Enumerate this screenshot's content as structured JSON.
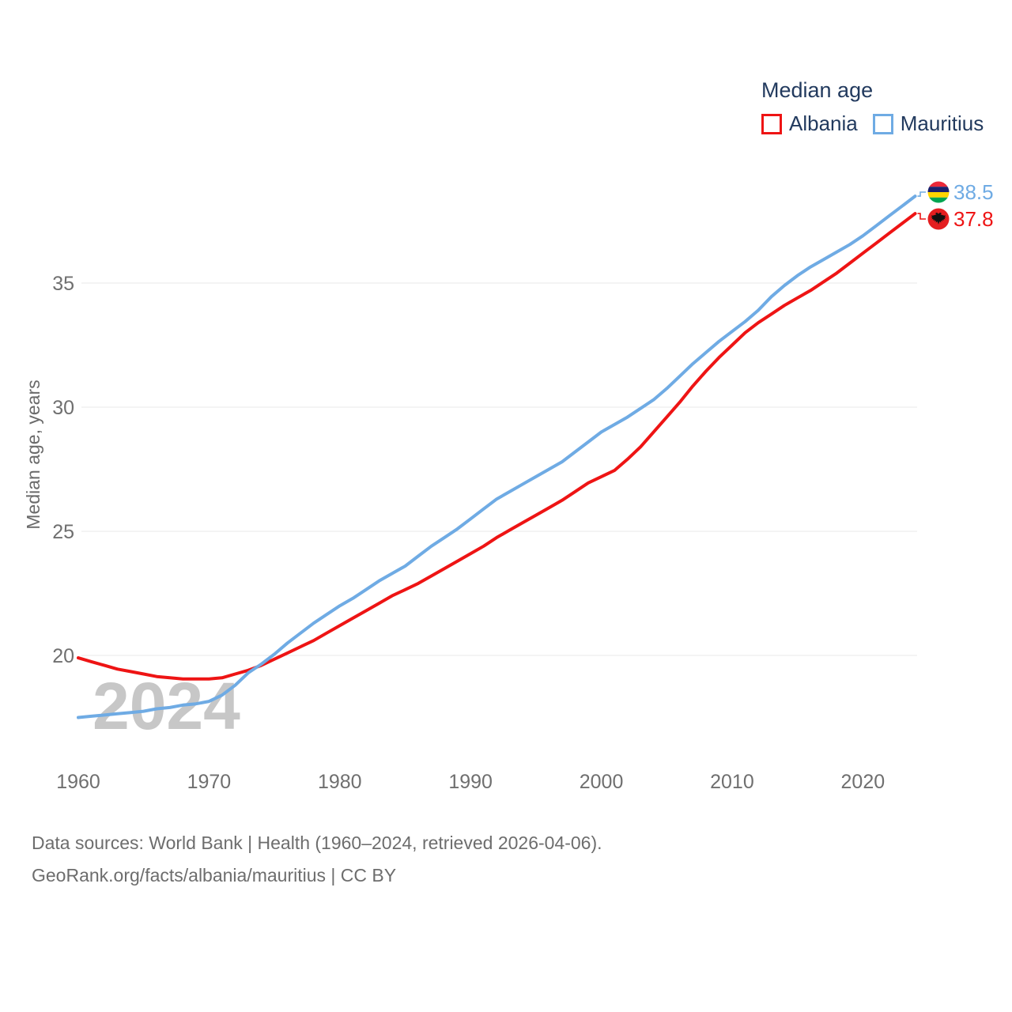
{
  "page": {
    "background": "#ffffff"
  },
  "legend": {
    "title": "Median age",
    "items": [
      {
        "label": "Albania",
        "color": "#ee1414"
      },
      {
        "label": "Mauritius",
        "color": "#6fabe4"
      }
    ]
  },
  "y_axis": {
    "title": "Median age, years",
    "ticks": [
      35,
      30,
      25,
      20
    ]
  },
  "x_axis": {
    "ticks": [
      1960,
      1970,
      1980,
      1990,
      2000,
      2010,
      2020
    ]
  },
  "watermark": "2024",
  "end_labels": [
    {
      "series": "Mauritius",
      "value": "38.5",
      "color": "#6fabe4"
    },
    {
      "series": "Albania",
      "value": "37.8",
      "color": "#ee1414"
    }
  ],
  "icons": {
    "mauritius_flag": {
      "name": "mauritius-flag-icon",
      "stripes": [
        "#ea2839",
        "#1a206d",
        "#ffd500",
        "#00a551"
      ]
    },
    "albania_flag": {
      "name": "albania-flag-icon",
      "background": "#e41e20",
      "eagle": "#111111"
    }
  },
  "footer": {
    "line1": "Data sources: World Bank | Health (1960–2024, retrieved 2026-04-06).",
    "line2": "GeoRank.org/facts/albania/mauritius | CC BY"
  },
  "chart_data": {
    "type": "line",
    "title": "Median age",
    "xlabel": "",
    "ylabel": "Median age, years",
    "xlim": [
      1960,
      2024
    ],
    "ylim": [
      17,
      39.5
    ],
    "x_ticks": [
      1960,
      1970,
      1980,
      1990,
      2000,
      2010,
      2020
    ],
    "y_ticks": [
      20,
      25,
      30,
      35
    ],
    "grid": "horizontal",
    "legend_position": "top-right",
    "x": [
      1960,
      1961,
      1962,
      1963,
      1964,
      1965,
      1966,
      1967,
      1968,
      1969,
      1970,
      1971,
      1972,
      1973,
      1974,
      1975,
      1976,
      1977,
      1978,
      1979,
      1980,
      1981,
      1982,
      1983,
      1984,
      1985,
      1986,
      1987,
      1988,
      1989,
      1990,
      1991,
      1992,
      1993,
      1994,
      1995,
      1996,
      1997,
      1998,
      1999,
      2000,
      2001,
      2002,
      2003,
      2004,
      2005,
      2006,
      2007,
      2008,
      2009,
      2010,
      2011,
      2012,
      2013,
      2014,
      2015,
      2016,
      2017,
      2018,
      2019,
      2020,
      2021,
      2022,
      2023,
      2024
    ],
    "series": [
      {
        "name": "Albania",
        "color": "#ee1414",
        "end_label": "37.8",
        "values": [
          19.9,
          19.75,
          19.6,
          19.45,
          19.35,
          19.25,
          19.15,
          19.1,
          19.05,
          19.05,
          19.05,
          19.1,
          19.25,
          19.4,
          19.6,
          19.85,
          20.1,
          20.35,
          20.6,
          20.9,
          21.2,
          21.5,
          21.8,
          22.1,
          22.4,
          22.65,
          22.9,
          23.2,
          23.5,
          23.8,
          24.1,
          24.4,
          24.75,
          25.05,
          25.35,
          25.65,
          25.95,
          26.25,
          26.6,
          26.95,
          27.2,
          27.45,
          27.9,
          28.4,
          29.0,
          29.6,
          30.2,
          30.85,
          31.45,
          32.0,
          32.5,
          33.0,
          33.4,
          33.75,
          34.1,
          34.4,
          34.7,
          35.05,
          35.4,
          35.8,
          36.2,
          36.6,
          37.0,
          37.4,
          37.8
        ]
      },
      {
        "name": "Mauritius",
        "color": "#6fabe4",
        "end_label": "38.5",
        "values": [
          17.5,
          17.55,
          17.6,
          17.65,
          17.7,
          17.75,
          17.85,
          17.9,
          18.0,
          18.05,
          18.15,
          18.4,
          18.8,
          19.3,
          19.65,
          20.05,
          20.5,
          20.9,
          21.3,
          21.65,
          22.0,
          22.3,
          22.65,
          23.0,
          23.3,
          23.6,
          24.0,
          24.4,
          24.75,
          25.1,
          25.5,
          25.9,
          26.3,
          26.6,
          26.9,
          27.2,
          27.5,
          27.8,
          28.2,
          28.6,
          29.0,
          29.3,
          29.6,
          29.95,
          30.3,
          30.75,
          31.25,
          31.75,
          32.2,
          32.65,
          33.05,
          33.45,
          33.9,
          34.45,
          34.9,
          35.3,
          35.65,
          35.95,
          36.25,
          36.55,
          36.9,
          37.3,
          37.7,
          38.1,
          38.5
        ]
      }
    ]
  }
}
